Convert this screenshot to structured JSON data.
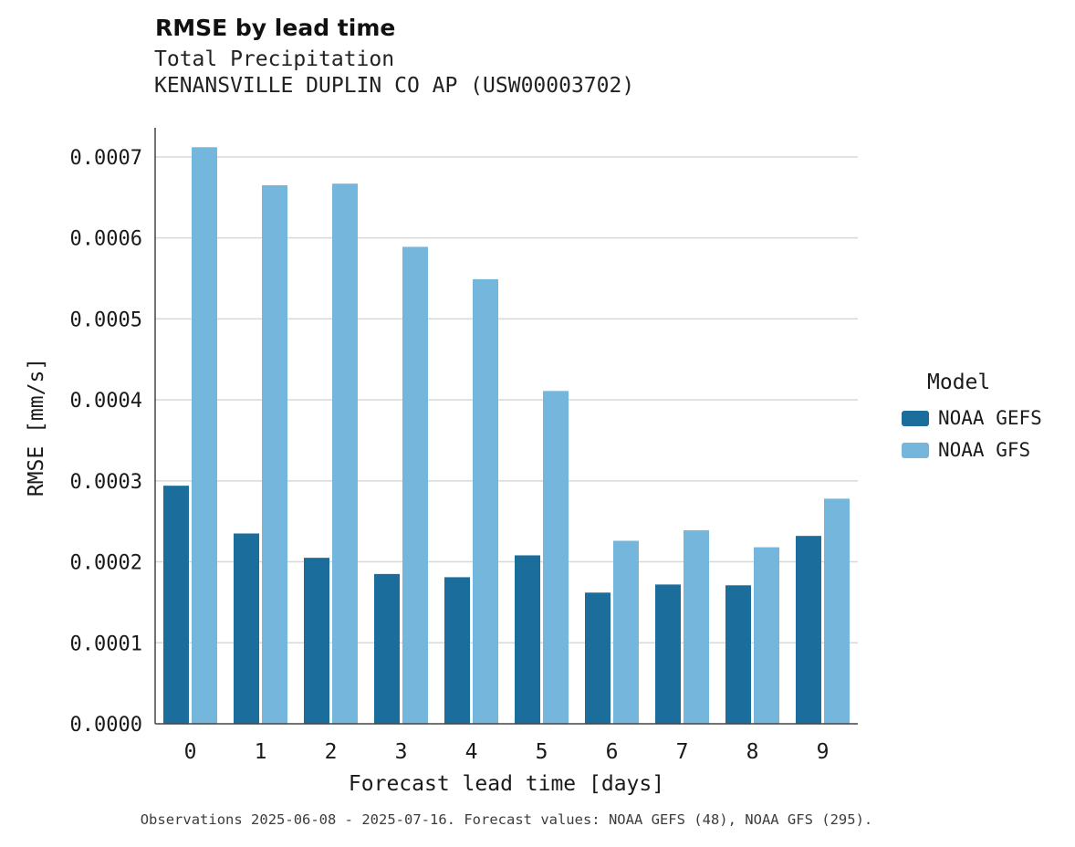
{
  "header": {
    "title": "RMSE by lead time",
    "subtitle1": "Total Precipitation",
    "subtitle2": "KENANSVILLE DUPLIN CO AP (USW00003702)"
  },
  "legend": {
    "title": "Model"
  },
  "caption": "Observations 2025-06-08 - 2025-07-16. Forecast values: NOAA GEFS (48), NOAA GFS (295).",
  "colors": {
    "gefs": "#1b6d9c",
    "gfs": "#75b7dc",
    "gridline": "#d8d8d8",
    "axis": "#444444"
  },
  "chart_data": {
    "type": "bar",
    "title": "RMSE by lead time",
    "xlabel": "Forecast lead time [days]",
    "ylabel": "RMSE [mm/s]",
    "categories": [
      "0",
      "1",
      "2",
      "3",
      "4",
      "5",
      "6",
      "7",
      "8",
      "9"
    ],
    "series": [
      {
        "name": "NOAA GEFS",
        "color": "#1b6d9c",
        "values": [
          0.000294,
          0.000235,
          0.000205,
          0.000185,
          0.000181,
          0.000208,
          0.000162,
          0.000172,
          0.000171,
          0.000232
        ]
      },
      {
        "name": "NOAA GFS",
        "color": "#75b7dc",
        "values": [
          0.000712,
          0.000665,
          0.000667,
          0.000589,
          0.000549,
          0.000411,
          0.000226,
          0.000239,
          0.000218,
          0.000278
        ]
      }
    ],
    "ylim": [
      0,
      0.000736
    ],
    "yticks": [
      0,
      0.0001,
      0.0002,
      0.0003,
      0.0004,
      0.0005,
      0.0006,
      0.0007
    ],
    "grid": true,
    "legend_position": "right",
    "legend_title": "Model"
  }
}
